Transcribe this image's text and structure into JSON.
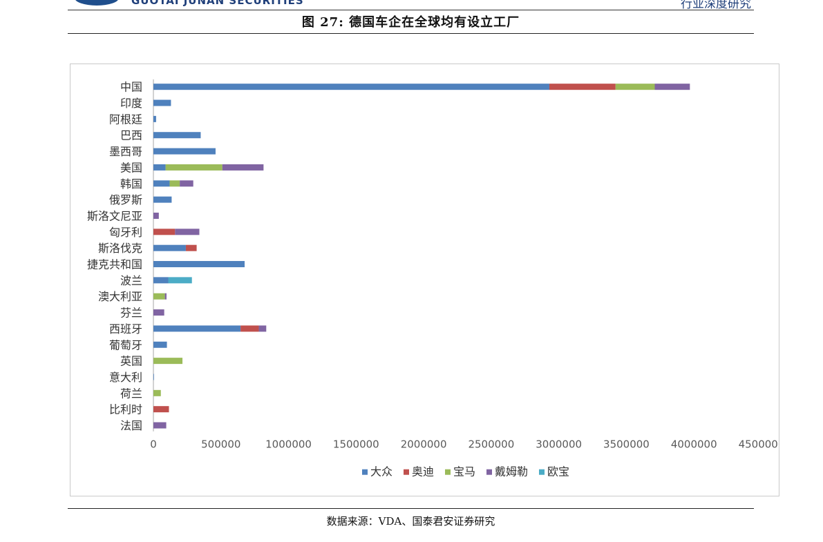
{
  "header": {
    "logo_text": "GUOTAI JUNAN SECURITIES",
    "right_text": "行业深度研究"
  },
  "figure": {
    "title": "图 27:  德国车企在全球均有设立工厂"
  },
  "source": {
    "text": "数据来源：VDA、国泰君安证券研究"
  },
  "chart_data": {
    "type": "bar",
    "orientation": "horizontal",
    "stacked": true,
    "categories": [
      "中国",
      "印度",
      "阿根廷",
      "巴西",
      "墨西哥",
      "美国",
      "韩国",
      "俄罗斯",
      "斯洛文尼亚",
      "匈牙利",
      "斯洛伐克",
      "捷克共和国",
      "波兰",
      "澳大利亚",
      "芬兰",
      "西班牙",
      "葡萄牙",
      "英国",
      "意大利",
      "荷兰",
      "比利时",
      "法国"
    ],
    "series": [
      {
        "name": "大众",
        "color": "#4f81bd",
        "values": [
          2930000,
          130000,
          20000,
          350000,
          460000,
          90000,
          120000,
          135000,
          0,
          0,
          240000,
          675000,
          110000,
          0,
          0,
          645000,
          100000,
          0,
          3000,
          0,
          0,
          0
        ]
      },
      {
        "name": "奥迪",
        "color": "#c0504d",
        "values": [
          490000,
          0,
          0,
          0,
          0,
          0,
          0,
          0,
          0,
          160000,
          80000,
          0,
          0,
          0,
          0,
          135000,
          0,
          0,
          0,
          0,
          115000,
          0
        ]
      },
      {
        "name": "宝马",
        "color": "#9bbb59",
        "values": [
          290000,
          0,
          0,
          0,
          0,
          420000,
          75000,
          0,
          0,
          0,
          0,
          0,
          0,
          85000,
          0,
          0,
          0,
          215000,
          0,
          55000,
          0,
          0
        ]
      },
      {
        "name": "戴姆勒",
        "color": "#8064a2",
        "values": [
          260000,
          0,
          0,
          0,
          0,
          305000,
          100000,
          0,
          40000,
          180000,
          0,
          0,
          0,
          12000,
          80000,
          55000,
          0,
          0,
          0,
          0,
          0,
          95000
        ]
      },
      {
        "name": "欧宝",
        "color": "#4bacc6",
        "values": [
          0,
          0,
          0,
          0,
          0,
          0,
          0,
          0,
          0,
          0,
          0,
          0,
          175000,
          0,
          0,
          0,
          0,
          0,
          0,
          0,
          0,
          0
        ]
      }
    ],
    "x_ticks": [
      "0",
      "500000",
      "1000000",
      "1500000",
      "2000000",
      "2500000",
      "3000000",
      "3500000",
      "4000000",
      "4500000"
    ],
    "xlim": [
      0,
      4500000
    ],
    "grid": false,
    "legend_position": "bottom"
  }
}
